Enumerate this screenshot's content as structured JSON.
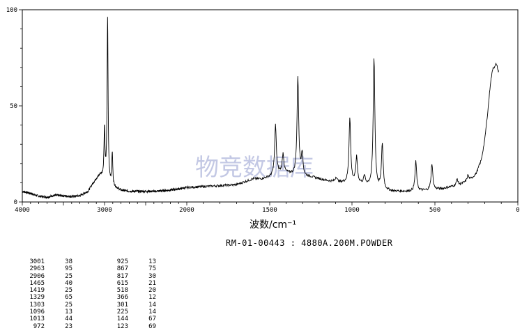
{
  "chart_data": {
    "type": "line",
    "title": "",
    "subtitle": "RM-01-00443 : 4880A.200M.POWDER",
    "xlabel": "波数/cm⁻¹",
    "ylabel": "",
    "xlim": [
      4000,
      0
    ],
    "ylim": [
      0,
      100
    ],
    "x_ticks": [
      "4000",
      "3000",
      "2000",
      "1500",
      "1000",
      "500",
      "0"
    ],
    "y_ticks": [
      "0",
      "50",
      "100"
    ],
    "grid": false,
    "legend": "none",
    "watermark": "物竞数据库",
    "line_color": "#000000",
    "baseline": [
      [
        4000,
        5.5
      ],
      [
        3900,
        4.5
      ],
      [
        3800,
        3.0
      ],
      [
        3700,
        2.5
      ],
      [
        3600,
        3.5
      ],
      [
        3500,
        3.2
      ],
      [
        3400,
        2.8
      ],
      [
        3300,
        3.2
      ],
      [
        3200,
        5.5
      ],
      [
        3150,
        9
      ],
      [
        3100,
        12
      ],
      [
        3050,
        14
      ],
      [
        3000,
        12
      ],
      [
        2950,
        10
      ],
      [
        2900,
        8
      ],
      [
        2800,
        6
      ],
      [
        2700,
        5.5
      ],
      [
        2600,
        5.5
      ],
      [
        2500,
        5.5
      ],
      [
        2400,
        5.5
      ],
      [
        2300,
        5.8
      ],
      [
        2200,
        6.2
      ],
      [
        2100,
        6.8
      ],
      [
        2000,
        7.5
      ],
      [
        1900,
        8
      ],
      [
        1800,
        8.5
      ],
      [
        1700,
        9
      ],
      [
        1650,
        10.5
      ],
      [
        1600,
        12
      ],
      [
        1550,
        12
      ],
      [
        1500,
        13
      ],
      [
        1450,
        15
      ],
      [
        1400,
        15
      ],
      [
        1350,
        14
      ],
      [
        1300,
        13
      ],
      [
        1250,
        13
      ],
      [
        1200,
        12
      ],
      [
        1150,
        11
      ],
      [
        1100,
        10.5
      ],
      [
        1050,
        10
      ],
      [
        1000,
        10
      ],
      [
        950,
        9.5
      ],
      [
        900,
        8.5
      ],
      [
        850,
        7
      ],
      [
        800,
        6
      ],
      [
        750,
        5.5
      ],
      [
        700,
        5.5
      ],
      [
        650,
        5.5
      ],
      [
        600,
        5.8
      ],
      [
        550,
        6
      ],
      [
        500,
        6.5
      ],
      [
        450,
        7
      ],
      [
        400,
        8
      ],
      [
        350,
        9
      ],
      [
        300,
        11
      ],
      [
        270,
        13
      ],
      [
        250,
        15
      ],
      [
        220,
        22
      ],
      [
        200,
        32
      ],
      [
        180,
        48
      ],
      [
        165,
        62
      ],
      [
        150,
        70
      ],
      [
        140,
        70
      ],
      [
        130,
        72
      ],
      [
        123,
        70
      ],
      [
        118,
        68
      ]
    ],
    "peaks": [
      {
        "wavenumber": 3001,
        "intensity": 38
      },
      {
        "wavenumber": 2963,
        "intensity": 95
      },
      {
        "wavenumber": 2906,
        "intensity": 25
      },
      {
        "wavenumber": 1465,
        "intensity": 40
      },
      {
        "wavenumber": 1419,
        "intensity": 25
      },
      {
        "wavenumber": 1329,
        "intensity": 65
      },
      {
        "wavenumber": 1303,
        "intensity": 25
      },
      {
        "wavenumber": 1096,
        "intensity": 13
      },
      {
        "wavenumber": 1013,
        "intensity": 44
      },
      {
        "wavenumber": 972,
        "intensity": 23
      },
      {
        "wavenumber": 925,
        "intensity": 13
      },
      {
        "wavenumber": 867,
        "intensity": 75
      },
      {
        "wavenumber": 817,
        "intensity": 30
      },
      {
        "wavenumber": 615,
        "intensity": 21
      },
      {
        "wavenumber": 518,
        "intensity": 20
      },
      {
        "wavenumber": 366,
        "intensity": 12
      },
      {
        "wavenumber": 301,
        "intensity": 14
      },
      {
        "wavenumber": 225,
        "intensity": 14
      },
      {
        "wavenumber": 144,
        "intensity": 67
      },
      {
        "wavenumber": 123,
        "intensity": 69
      }
    ],
    "peak_table": {
      "left": [
        [
          "3001",
          "38"
        ],
        [
          "2963",
          "95"
        ],
        [
          "2906",
          "25"
        ],
        [
          "1465",
          "40"
        ],
        [
          "1419",
          "25"
        ],
        [
          "1329",
          "65"
        ],
        [
          "1303",
          "25"
        ],
        [
          "1096",
          "13"
        ],
        [
          "1013",
          "44"
        ],
        [
          "972",
          "23"
        ]
      ],
      "right": [
        [
          "925",
          "13"
        ],
        [
          "867",
          "75"
        ],
        [
          "817",
          "30"
        ],
        [
          "615",
          "21"
        ],
        [
          "518",
          "20"
        ],
        [
          "366",
          "12"
        ],
        [
          "301",
          "14"
        ],
        [
          "225",
          "14"
        ],
        [
          "144",
          "67"
        ],
        [
          "123",
          "69"
        ]
      ]
    }
  }
}
